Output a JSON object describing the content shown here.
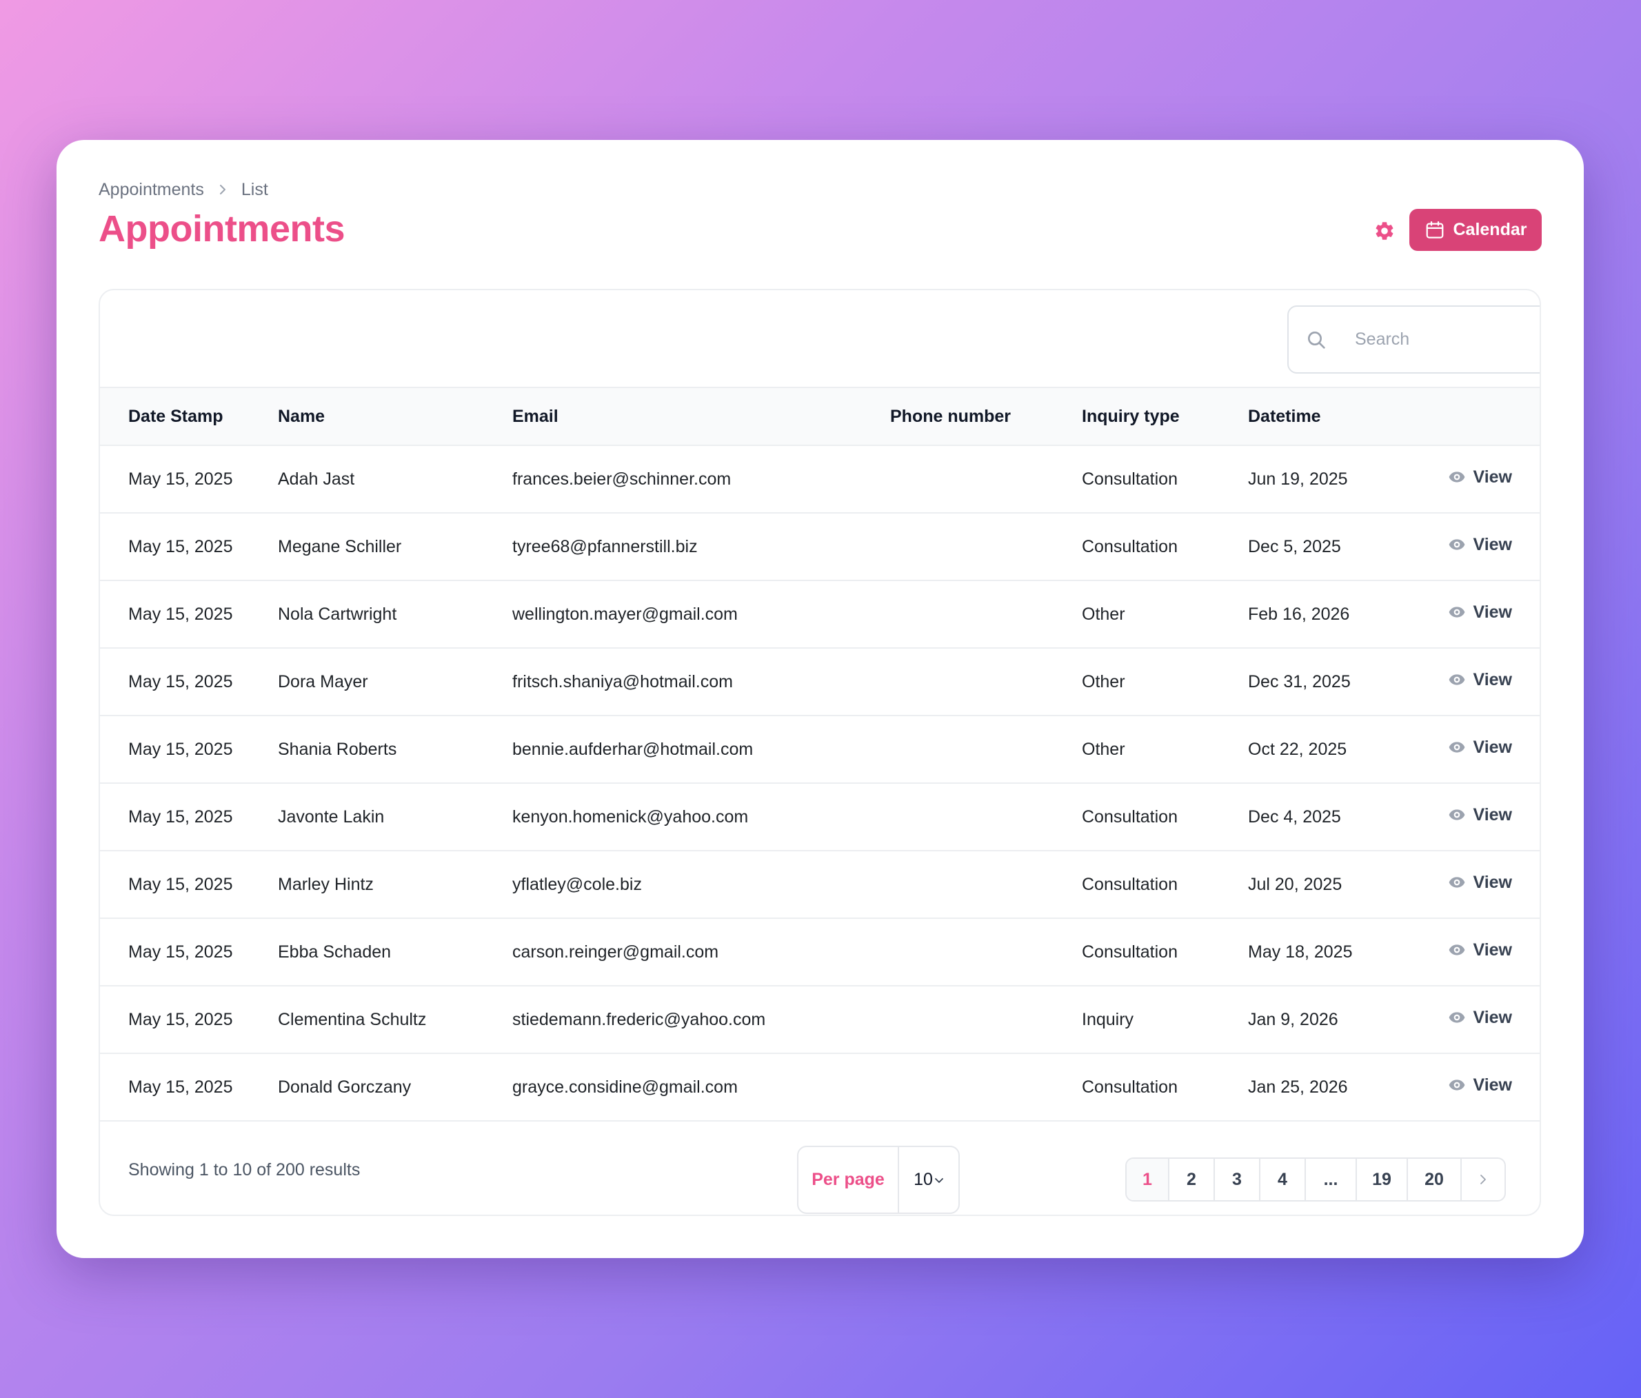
{
  "breadcrumb": {
    "parent": "Appointments",
    "current": "List"
  },
  "page_title": "Appointments",
  "header": {
    "calendar_label": "Calendar"
  },
  "search": {
    "placeholder": "Search"
  },
  "table": {
    "columns": [
      "Date Stamp",
      "Name",
      "Email",
      "Phone number",
      "Inquiry type",
      "Datetime"
    ],
    "action_label": "View",
    "rows": [
      {
        "date_stamp": "May 15, 2025",
        "name": "Adah Jast",
        "email": "frances.beier@schinner.com",
        "phone": "",
        "inquiry_type": "Consultation",
        "datetime": "Jun 19, 2025"
      },
      {
        "date_stamp": "May 15, 2025",
        "name": "Megane Schiller",
        "email": "tyree68@pfannerstill.biz",
        "phone": "",
        "inquiry_type": "Consultation",
        "datetime": "Dec 5, 2025"
      },
      {
        "date_stamp": "May 15, 2025",
        "name": "Nola Cartwright",
        "email": "wellington.mayer@gmail.com",
        "phone": "",
        "inquiry_type": "Other",
        "datetime": "Feb 16, 2026"
      },
      {
        "date_stamp": "May 15, 2025",
        "name": "Dora Mayer",
        "email": "fritsch.shaniya@hotmail.com",
        "phone": "",
        "inquiry_type": "Other",
        "datetime": "Dec 31, 2025"
      },
      {
        "date_stamp": "May 15, 2025",
        "name": "Shania Roberts",
        "email": "bennie.aufderhar@hotmail.com",
        "phone": "",
        "inquiry_type": "Other",
        "datetime": "Oct 22, 2025"
      },
      {
        "date_stamp": "May 15, 2025",
        "name": "Javonte Lakin",
        "email": "kenyon.homenick@yahoo.com",
        "phone": "",
        "inquiry_type": "Consultation",
        "datetime": "Dec 4, 2025"
      },
      {
        "date_stamp": "May 15, 2025",
        "name": "Marley Hintz",
        "email": "yflatley@cole.biz",
        "phone": "",
        "inquiry_type": "Consultation",
        "datetime": "Jul 20, 2025"
      },
      {
        "date_stamp": "May 15, 2025",
        "name": "Ebba Schaden",
        "email": "carson.reinger@gmail.com",
        "phone": "",
        "inquiry_type": "Consultation",
        "datetime": "May 18, 2025"
      },
      {
        "date_stamp": "May 15, 2025",
        "name": "Clementina Schultz",
        "email": "stiedemann.frederic@yahoo.com",
        "phone": "",
        "inquiry_type": "Inquiry",
        "datetime": "Jan 9, 2026"
      },
      {
        "date_stamp": "May 15, 2025",
        "name": "Donald Gorczany",
        "email": "grayce.considine@gmail.com",
        "phone": "",
        "inquiry_type": "Consultation",
        "datetime": "Jan 25, 2026"
      }
    ]
  },
  "footer": {
    "showing_text": "Showing 1 to 10 of 200 results",
    "per_page_label": "Per page",
    "per_page_value": "10",
    "pages": [
      "1",
      "2",
      "3",
      "4",
      "...",
      "19",
      "20"
    ],
    "active_page": "1"
  },
  "colors": {
    "accent": "#ec4f89",
    "button": "#d94377"
  },
  "icons": {
    "settings": "gear-icon",
    "calendar": "calendar-icon",
    "search": "search-icon",
    "view": "eye-icon",
    "next": "chevron-right-icon",
    "select": "chevron-down-icon",
    "breadcrumb_sep": "chevron-right-icon"
  }
}
